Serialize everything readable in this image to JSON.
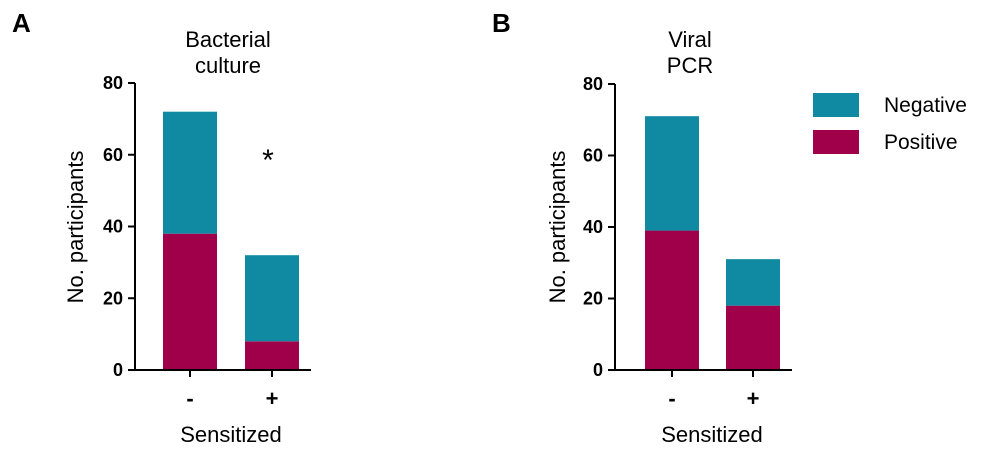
{
  "chart_data": [
    {
      "type": "bar",
      "stacked": true,
      "panel": "A",
      "title_lines": [
        "Bacterial",
        "culture"
      ],
      "categories": [
        "-",
        "+"
      ],
      "series": [
        {
          "name": "Positive",
          "values": [
            38,
            8
          ],
          "color": "#a0004a"
        },
        {
          "name": "Negative",
          "values": [
            34,
            24
          ],
          "color": "#108aa3"
        }
      ],
      "xlabel": "Sensitized",
      "ylabel": "No. participants",
      "ylim": [
        0,
        80
      ],
      "yticks": [
        0,
        20,
        40,
        60,
        80
      ],
      "annotation": "*"
    },
    {
      "type": "bar",
      "stacked": true,
      "panel": "B",
      "title_lines": [
        "Viral",
        "PCR"
      ],
      "categories": [
        "-",
        "+"
      ],
      "series": [
        {
          "name": "Positive",
          "values": [
            39,
            18
          ],
          "color": "#a0004a"
        },
        {
          "name": "Negative",
          "values": [
            32,
            13
          ],
          "color": "#108aa3"
        }
      ],
      "xlabel": "Sensitized",
      "ylabel": "No. participants",
      "ylim": [
        0,
        80
      ],
      "yticks": [
        0,
        20,
        40,
        60,
        80
      ]
    }
  ],
  "legend": {
    "placement": "right",
    "items": [
      {
        "label": "Negative",
        "color": "#108aa3"
      },
      {
        "label": "Positive",
        "color": "#a0004a"
      }
    ]
  }
}
